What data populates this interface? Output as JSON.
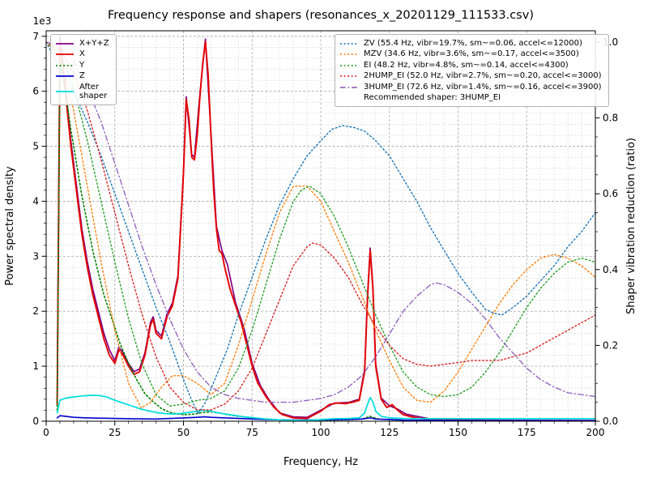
{
  "chart_data": {
    "type": "line",
    "title": "Frequency response and shapers (resonances_x_20201129_111533.csv)",
    "xlabel": "Frequency, Hz",
    "ylabel_left": "Power spectral density",
    "ylabel_right": "Shaper vibration reduction (ratio)",
    "x_axis": {
      "lim": [
        0,
        200
      ],
      "major_ticks": [
        0,
        25,
        50,
        75,
        100,
        125,
        150,
        175,
        200
      ],
      "major_step": 25,
      "minor_step": 5
    },
    "left_axis": {
      "lim": [
        0,
        7100
      ],
      "ticks": [
        0,
        1,
        2,
        3,
        4,
        5,
        6,
        7
      ],
      "tick_scale": 1000,
      "major_step": 1000,
      "minor_step": 200,
      "offset_text": "1e3"
    },
    "right_axis": {
      "lim": [
        0,
        1.03
      ],
      "ticks": [
        0.0,
        0.2,
        0.4,
        0.6,
        0.8,
        1.0
      ],
      "minor_step": 0.05
    },
    "grid": {
      "major_color": "#a6a6a6",
      "minor_color": "#dcdcdc"
    },
    "legend_position": {
      "psd": "upper-left",
      "shapers": "upper-right"
    },
    "legend_note": "Recommended shaper: 3HUMP_EI",
    "psd_series": [
      {
        "name": "X+Y+Z",
        "color": "#800080",
        "style": "solid",
        "width": 1.7,
        "x": [
          4,
          5,
          7,
          9,
          11,
          13,
          15,
          17,
          19,
          21,
          23,
          25,
          26.5,
          28,
          30,
          32,
          34,
          36,
          38,
          39,
          40,
          42,
          44,
          46,
          48,
          50,
          51,
          53,
          54,
          56,
          58,
          60,
          62,
          64,
          66,
          69,
          72,
          75,
          78,
          81,
          85,
          90,
          95,
          100,
          105,
          110,
          114,
          116,
          117,
          118,
          119,
          120,
          122,
          125,
          128,
          131,
          135,
          140,
          150,
          160,
          175,
          200
        ],
        "y": [
          350,
          7000,
          6100,
          5100,
          4300,
          3500,
          2900,
          2400,
          2000,
          1600,
          1300,
          1100,
          1350,
          1250,
          1050,
          900,
          950,
          1250,
          1800,
          1900,
          1650,
          1550,
          1950,
          2150,
          2650,
          4550,
          5900,
          4850,
          4800,
          5950,
          6950,
          5250,
          3550,
          3100,
          2850,
          2150,
          1700,
          1050,
          650,
          400,
          150,
          80,
          70,
          200,
          330,
          340,
          400,
          950,
          2250,
          3150,
          2450,
          1050,
          420,
          280,
          220,
          130,
          90,
          40,
          25,
          20,
          15,
          12
        ]
      },
      {
        "name": "X",
        "color": "#e60000",
        "style": "solid",
        "width": 1.9,
        "x": [
          4,
          5,
          7,
          9,
          11,
          13,
          15,
          17,
          19,
          21,
          23,
          25,
          26.5,
          28,
          30,
          32,
          34,
          36,
          38,
          39,
          40,
          42,
          44,
          46,
          48,
          50,
          51,
          52,
          53,
          54,
          55,
          56,
          57,
          58,
          59,
          60,
          61,
          62,
          63,
          64,
          65,
          67,
          69,
          71,
          73,
          75,
          77,
          80,
          83,
          86,
          90,
          95,
          100,
          103,
          106,
          109,
          112,
          114,
          116,
          117,
          118,
          119,
          120,
          122,
          124,
          126,
          128,
          130,
          133,
          136,
          140,
          150,
          160,
          175,
          200
        ],
        "y": [
          300,
          6900,
          6000,
          5000,
          4200,
          3400,
          2800,
          2300,
          1900,
          1500,
          1200,
          1050,
          1300,
          1200,
          1000,
          850,
          900,
          1200,
          1750,
          1850,
          1600,
          1500,
          1900,
          2100,
          2600,
          4500,
          5850,
          5500,
          4800,
          4750,
          5200,
          5900,
          6500,
          6900,
          6300,
          5200,
          4200,
          3500,
          3100,
          3050,
          2800,
          2400,
          2100,
          1800,
          1400,
          1000,
          700,
          450,
          250,
          120,
          60,
          50,
          180,
          300,
          330,
          320,
          350,
          380,
          900,
          2200,
          3100,
          2400,
          1000,
          400,
          250,
          300,
          200,
          120,
          80,
          50,
          30,
          20,
          15,
          10,
          10
        ]
      },
      {
        "name": "Y",
        "color": "#008000",
        "style": "dotted",
        "width": 1.6,
        "x": [
          4,
          5,
          7,
          9,
          11,
          13,
          15,
          17,
          19,
          21,
          23,
          25,
          27,
          30,
          33,
          36,
          39,
          42,
          45,
          48,
          51,
          54,
          57,
          60,
          63,
          66,
          70,
          75,
          80,
          85,
          90,
          95,
          100,
          105,
          110,
          115,
          117,
          118,
          119,
          121,
          125,
          130,
          140,
          160,
          200
        ],
        "y": [
          200,
          6550,
          6000,
          5300,
          4700,
          4100,
          3600,
          3100,
          2700,
          2300,
          2000,
          1700,
          1400,
          1050,
          750,
          500,
          350,
          230,
          160,
          130,
          120,
          130,
          160,
          170,
          150,
          120,
          90,
          60,
          40,
          25,
          15,
          12,
          15,
          20,
          25,
          40,
          70,
          90,
          70,
          40,
          25,
          15,
          10,
          8,
          8
        ]
      },
      {
        "name": "Z",
        "color": "#0000cc",
        "style": "solid",
        "width": 1.6,
        "x": [
          4,
          5,
          7,
          10,
          15,
          20,
          25,
          30,
          40,
          50,
          55,
          58,
          60,
          70,
          80,
          90,
          100,
          110,
          115,
          118,
          120,
          130,
          150,
          200
        ],
        "y": [
          60,
          100,
          90,
          70,
          60,
          55,
          50,
          45,
          40,
          60,
          70,
          80,
          70,
          50,
          30,
          20,
          25,
          30,
          40,
          60,
          40,
          20,
          15,
          10
        ]
      },
      {
        "name": "After\nshaper",
        "color": "#00dddd",
        "style": "solid",
        "width": 1.7,
        "x": [
          4,
          5,
          7,
          10,
          13,
          16,
          19,
          22,
          25,
          28,
          31,
          34,
          37,
          40,
          43,
          46,
          49,
          52,
          55,
          57,
          59,
          61,
          64,
          68,
          72,
          76,
          80,
          85,
          90,
          95,
          100,
          105,
          110,
          114,
          116,
          117,
          118,
          119,
          120,
          122,
          125,
          130,
          140,
          160,
          200
        ],
        "y": [
          150,
          380,
          420,
          440,
          460,
          470,
          470,
          440,
          380,
          330,
          280,
          230,
          190,
          160,
          140,
          130,
          140,
          160,
          180,
          200,
          190,
          170,
          140,
          110,
          80,
          60,
          40,
          25,
          15,
          15,
          30,
          45,
          50,
          60,
          150,
          300,
          430,
          350,
          180,
          90,
          60,
          50,
          45,
          45,
          45
        ]
      }
    ],
    "shaper_series": [
      {
        "label": "ZV (55.4 Hz, vibr=19.7%, sm~=0.06, accel<=12000)",
        "name": "ZV",
        "color": "#1f77b4",
        "style": "dotted",
        "width": 1.4,
        "x": [
          0,
          5,
          10,
          15,
          20,
          25,
          30,
          35,
          40,
          45,
          50,
          53,
          55.4,
          58,
          62,
          66,
          70,
          75,
          80,
          85,
          90,
          95,
          100,
          104,
          108,
          112,
          116,
          120,
          125,
          130,
          135,
          140,
          145,
          150,
          155,
          160,
          163,
          166,
          170,
          175,
          180,
          185,
          190,
          195,
          200
        ],
        "y": [
          1.0,
          0.93,
          0.87,
          0.79,
          0.7,
          0.6,
          0.5,
          0.4,
          0.3,
          0.21,
          0.11,
          0.055,
          0.02,
          0.05,
          0.12,
          0.19,
          0.28,
          0.38,
          0.48,
          0.57,
          0.64,
          0.7,
          0.74,
          0.77,
          0.78,
          0.775,
          0.765,
          0.74,
          0.7,
          0.64,
          0.58,
          0.51,
          0.45,
          0.39,
          0.34,
          0.295,
          0.285,
          0.28,
          0.3,
          0.33,
          0.37,
          0.41,
          0.46,
          0.5,
          0.55
        ]
      },
      {
        "label": "MZV (34.6 Hz, vibr=3.6%, sm~=0.17, accel<=3500)",
        "name": "MZV",
        "color": "#ff7f0e",
        "style": "dotted",
        "width": 1.4,
        "x": [
          0,
          5,
          10,
          15,
          20,
          25,
          30,
          34.6,
          38,
          42,
          46,
          50,
          55,
          60,
          65,
          70,
          75,
          80,
          85,
          90,
          95,
          100,
          105,
          110,
          115,
          120,
          125,
          130,
          135,
          140,
          145,
          150,
          155,
          160,
          165,
          170,
          175,
          180,
          185,
          190,
          195,
          200
        ],
        "y": [
          1.0,
          0.96,
          0.82,
          0.62,
          0.42,
          0.24,
          0.1,
          0.035,
          0.05,
          0.09,
          0.12,
          0.12,
          0.1,
          0.07,
          0.1,
          0.2,
          0.32,
          0.44,
          0.55,
          0.62,
          0.62,
          0.58,
          0.5,
          0.42,
          0.33,
          0.24,
          0.16,
          0.09,
          0.055,
          0.05,
          0.08,
          0.13,
          0.19,
          0.25,
          0.31,
          0.36,
          0.4,
          0.43,
          0.44,
          0.43,
          0.41,
          0.38
        ]
      },
      {
        "label": "EI (48.2 Hz, vibr=4.8%, sm~=0.14, accel<=4300)",
        "name": "EI",
        "color": "#2ca02c",
        "style": "dotted",
        "width": 1.4,
        "x": [
          0,
          5,
          10,
          15,
          20,
          25,
          30,
          35,
          40,
          45,
          50,
          55,
          60,
          65,
          70,
          75,
          80,
          85,
          90,
          93,
          96,
          100,
          105,
          110,
          115,
          120,
          125,
          130,
          135,
          140,
          145,
          150,
          155,
          160,
          165,
          170,
          175,
          180,
          185,
          190,
          195,
          200
        ],
        "y": [
          1.0,
          0.97,
          0.88,
          0.74,
          0.58,
          0.42,
          0.27,
          0.15,
          0.07,
          0.04,
          0.045,
          0.055,
          0.06,
          0.08,
          0.14,
          0.24,
          0.36,
          0.48,
          0.58,
          0.61,
          0.62,
          0.6,
          0.54,
          0.46,
          0.37,
          0.28,
          0.2,
          0.13,
          0.09,
          0.07,
          0.065,
          0.07,
          0.09,
          0.13,
          0.18,
          0.24,
          0.3,
          0.35,
          0.39,
          0.42,
          0.43,
          0.42
        ]
      },
      {
        "label": "2HUMP_EI (52.0 Hz, vibr=2.7%, sm~=0.20, accel<=3000)",
        "name": "2HUMP_EI",
        "color": "#d62728",
        "style": "dotted",
        "width": 1.4,
        "x": [
          0,
          5,
          10,
          15,
          20,
          25,
          30,
          35,
          40,
          45,
          50,
          55,
          60,
          65,
          70,
          75,
          80,
          85,
          90,
          95,
          97,
          100,
          105,
          110,
          115,
          120,
          125,
          130,
          135,
          140,
          145,
          150,
          155,
          160,
          165,
          170,
          175,
          180,
          185,
          190,
          195,
          200
        ],
        "y": [
          1.0,
          0.98,
          0.92,
          0.82,
          0.69,
          0.55,
          0.41,
          0.28,
          0.17,
          0.09,
          0.05,
          0.03,
          0.03,
          0.045,
          0.08,
          0.14,
          0.23,
          0.32,
          0.41,
          0.46,
          0.47,
          0.465,
          0.43,
          0.38,
          0.31,
          0.25,
          0.2,
          0.165,
          0.15,
          0.145,
          0.15,
          0.155,
          0.16,
          0.16,
          0.16,
          0.17,
          0.18,
          0.2,
          0.22,
          0.24,
          0.26,
          0.28
        ]
      },
      {
        "label": "3HUMP_EI (72.6 Hz, vibr=1.4%, sm~=0.16, accel<=3900)",
        "name": "3HUMP_EI",
        "color": "#9467bd",
        "style": "dashdot",
        "width": 1.4,
        "x": [
          0,
          5,
          10,
          15,
          20,
          25,
          30,
          35,
          40,
          45,
          50,
          55,
          60,
          65,
          70,
          75,
          80,
          85,
          90,
          95,
          100,
          105,
          110,
          115,
          120,
          125,
          130,
          135,
          140,
          142,
          145,
          150,
          155,
          160,
          165,
          170,
          175,
          180,
          185,
          190,
          195,
          200
        ],
        "y": [
          1.0,
          0.99,
          0.95,
          0.88,
          0.79,
          0.68,
          0.57,
          0.46,
          0.36,
          0.27,
          0.19,
          0.13,
          0.09,
          0.07,
          0.06,
          0.055,
          0.05,
          0.05,
          0.05,
          0.055,
          0.06,
          0.07,
          0.09,
          0.12,
          0.17,
          0.23,
          0.29,
          0.33,
          0.36,
          0.365,
          0.36,
          0.34,
          0.31,
          0.27,
          0.22,
          0.18,
          0.14,
          0.11,
          0.09,
          0.075,
          0.07,
          0.065
        ]
      }
    ]
  }
}
